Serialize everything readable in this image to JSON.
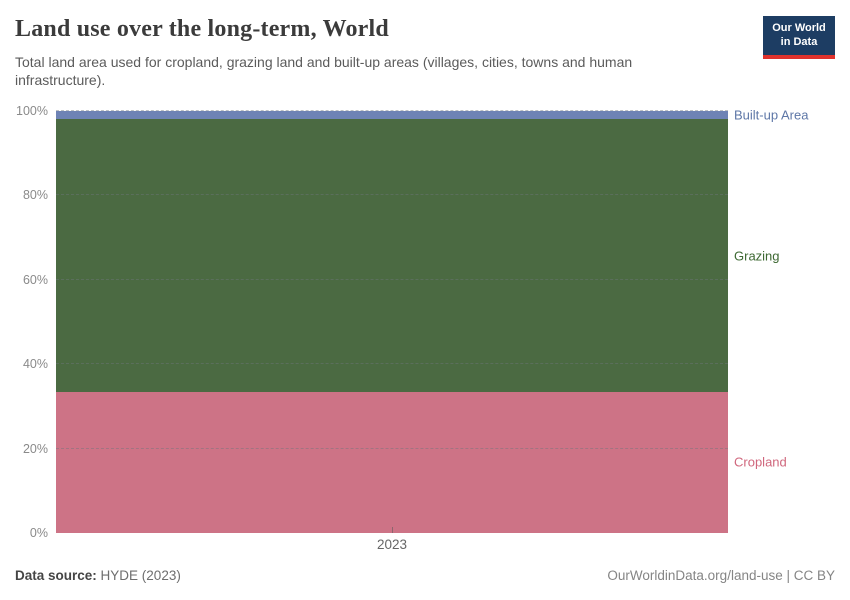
{
  "header": {
    "title": "Land use over the long-term, World",
    "subtitle": "Total land area used for cropland, grazing land and built-up areas (villages, cities, towns and human infrastructure).",
    "logo": {
      "line1": "Our World",
      "line2": "in Data",
      "background_color": "#1d3d63",
      "accent_color": "#e0322d"
    }
  },
  "chart_data": {
    "type": "area",
    "stacked": true,
    "title": "Land use over the long-term, World",
    "unit": "%",
    "ylim": [
      0,
      100
    ],
    "grid": true,
    "yticks": [
      0,
      20,
      40,
      60,
      80,
      100
    ],
    "ytick_suffix": "%",
    "x_ticks": [
      "2023"
    ],
    "x_tick_label": "2023",
    "legend_position": "right-of-plot",
    "series": [
      {
        "name": "Cropland",
        "value": 33.5,
        "color": "#cd7386",
        "label_color": "#d0677d"
      },
      {
        "name": "Grazing",
        "value": 64.5,
        "color": "#4b6a42",
        "label_color": "#3d6832"
      },
      {
        "name": "Built-up Area",
        "value": 2.0,
        "color": "#6e83b5",
        "label_color": "#5e77a7"
      }
    ]
  },
  "footer": {
    "source_label": "Data source:",
    "source_value": "HYDE (2023)",
    "license_text": "OurWorldinData.org/land-use | CC BY"
  }
}
